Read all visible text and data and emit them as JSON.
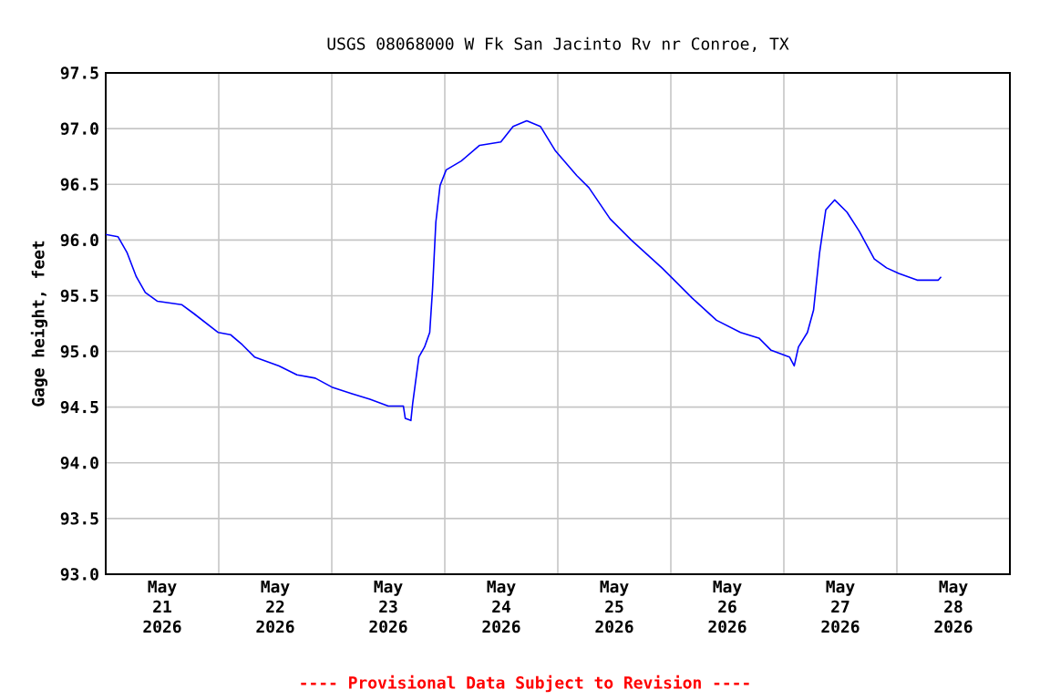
{
  "chart_data": {
    "type": "line",
    "title": "USGS 08068000 W Fk San Jacinto Rv nr Conroe, TX",
    "ylabel": "Gage height, feet",
    "annotations": [
      "---- Provisional Data Subject to Revision ----"
    ],
    "x": [
      "2026-05-21T00:00",
      "2026-05-21T02:36",
      "2026-05-21T04:30",
      "2026-05-21T06:30",
      "2026-05-21T08:24",
      "2026-05-21T11:00",
      "2026-05-21T16:06",
      "2026-05-21T18:42",
      "2026-05-21T23:54",
      "2026-05-22T02:30",
      "2026-05-22T05:00",
      "2026-05-22T07:36",
      "2026-05-22T12:48",
      "2026-05-22T16:36",
      "2026-05-22T20:30",
      "2026-05-23T00:00",
      "2026-05-23T04:18",
      "2026-05-23T08:06",
      "2026-05-23T12:00",
      "2026-05-23T15:12",
      "2026-05-23T15:36",
      "2026-05-23T16:48",
      "2026-05-23T17:12",
      "2026-05-23T18:30",
      "2026-05-23T19:42",
      "2026-05-23T20:48",
      "2026-05-23T21:24",
      "2026-05-23T22:06",
      "2026-05-23T23:00",
      "2026-05-24T00:18",
      "2026-05-24T03:30",
      "2026-05-24T07:24",
      "2026-05-24T11:54",
      "2026-05-24T14:30",
      "2026-05-24T17:24",
      "2026-05-24T20:18",
      "2026-05-24T23:30",
      "2026-05-25T04:00",
      "2026-05-25T06:36",
      "2026-05-25T11:06",
      "2026-05-25T15:36",
      "2026-05-25T22:06",
      "2026-05-26T00:00",
      "2026-05-26T04:30",
      "2026-05-26T09:42",
      "2026-05-26T14:48",
      "2026-05-26T18:42",
      "2026-05-26T21:18",
      "2026-05-27T01:12",
      "2026-05-27T02:12",
      "2026-05-27T03:06",
      "2026-05-27T05:00",
      "2026-05-27T06:18",
      "2026-05-27T07:36",
      "2026-05-27T08:54",
      "2026-05-27T10:48",
      "2026-05-27T13:24",
      "2026-05-27T16:00",
      "2026-05-27T19:12",
      "2026-05-27T21:48",
      "2026-05-28T00:24",
      "2026-05-28T04:18",
      "2026-05-28T08:48",
      "2026-05-28T09:24"
    ],
    "series": [
      {
        "color": "#0000ff",
        "values": [
          96.05,
          96.03,
          95.89,
          95.67,
          95.53,
          95.45,
          95.42,
          95.34,
          95.17,
          95.15,
          95.06,
          94.95,
          94.87,
          94.79,
          94.76,
          94.68,
          94.62,
          94.57,
          94.51,
          94.51,
          94.4,
          94.38,
          94.54,
          94.95,
          95.04,
          95.17,
          95.56,
          96.16,
          96.49,
          96.63,
          96.71,
          96.85,
          96.88,
          97.02,
          97.07,
          97.02,
          96.8,
          96.58,
          96.47,
          96.19,
          96.0,
          95.75,
          95.67,
          95.48,
          95.28,
          95.17,
          95.12,
          95.01,
          94.95,
          94.87,
          95.04,
          95.17,
          95.37,
          95.89,
          96.27,
          96.36,
          96.25,
          96.08,
          95.83,
          95.75,
          95.7,
          95.64,
          95.64,
          95.67
        ]
      }
    ],
    "xlim": [
      "2026-05-21T00:00",
      "2026-05-29T00:00"
    ],
    "xticks": [
      {
        "value": "2026-05-21T00:00",
        "label": null
      },
      {
        "value": "2026-05-22T00:00",
        "label": null
      },
      {
        "value": "2026-05-23T00:00",
        "label": null
      },
      {
        "value": "2026-05-24T00:00",
        "label": null
      },
      {
        "value": "2026-05-25T00:00",
        "label": null
      },
      {
        "value": "2026-05-26T00:00",
        "label": null
      },
      {
        "value": "2026-05-27T00:00",
        "label": null
      },
      {
        "value": "2026-05-28T00:00",
        "label": null
      },
      {
        "value": "2026-05-29T00:00",
        "label": null
      },
      {
        "value": "2026-05-21T12:00",
        "label": "May 21 2026"
      },
      {
        "value": "2026-05-22T12:00",
        "label": "May 22 2026"
      },
      {
        "value": "2026-05-23T12:00",
        "label": "May 23 2026"
      },
      {
        "value": "2026-05-24T12:00",
        "label": "May 24 2026"
      },
      {
        "value": "2026-05-25T12:00",
        "label": "May 25 2026"
      },
      {
        "value": "2026-05-26T12:00",
        "label": "May 26 2026"
      },
      {
        "value": "2026-05-27T12:00",
        "label": "May 27 2026"
      },
      {
        "value": "2026-05-28T12:00",
        "label": "May 28 2026"
      }
    ],
    "ylim": [
      93.0,
      97.5
    ],
    "yticks": [
      {
        "value": 93,
        "label": "93.0"
      },
      93.5,
      {
        "value": 94,
        "label": "94.0"
      },
      94.5,
      {
        "value": 95,
        "label": "95.0"
      },
      95.5,
      {
        "value": 96,
        "label": "96.0"
      },
      96.5,
      {
        "value": 97,
        "label": "97.0"
      },
      97.5
    ],
    "grid": true,
    "marker": "none",
    "line_style": "solid"
  }
}
